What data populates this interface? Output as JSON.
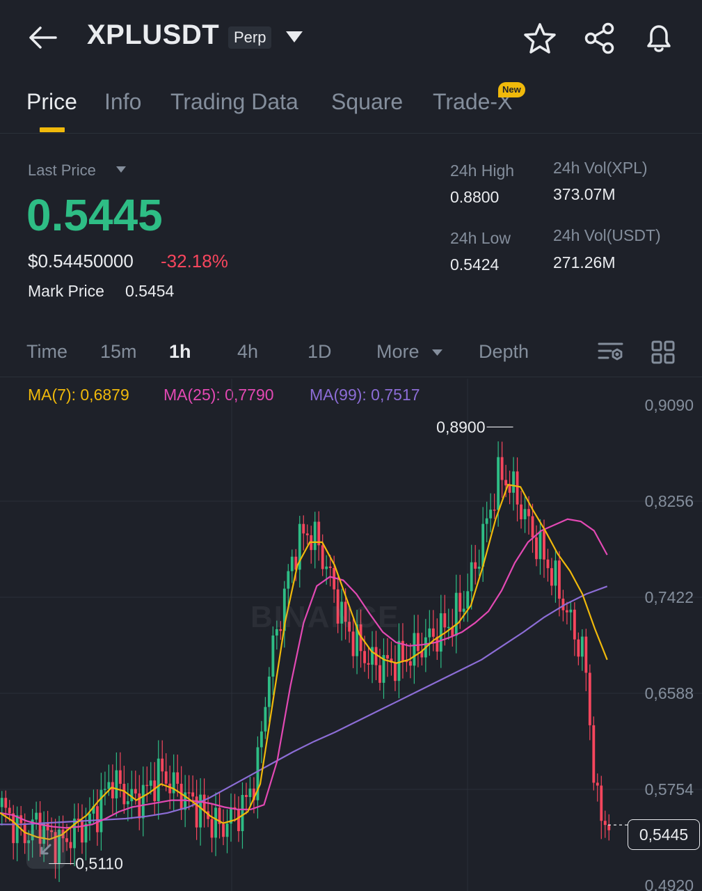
{
  "header": {
    "symbol": "XPLUSDT",
    "contract_type": "Perp",
    "icons": [
      "back-arrow-icon",
      "dropdown-caret-icon",
      "star-icon",
      "share-icon",
      "bell-icon"
    ]
  },
  "tabs": [
    {
      "label": "Price",
      "active": true
    },
    {
      "label": "Info",
      "active": false
    },
    {
      "label": "Trading Data",
      "active": false
    },
    {
      "label": "Square",
      "active": false
    },
    {
      "label": "Trade-X",
      "active": false,
      "badge": "New"
    }
  ],
  "ticker": {
    "last_price_label": "Last Price",
    "last_price": "0.5445",
    "usd_price": "$0.54450000",
    "change_pct": "-32.18%",
    "mark_price_label": "Mark Price",
    "mark_price": "0.5454",
    "high_label": "24h High",
    "high": "0.8800",
    "low_label": "24h Low",
    "low": "0.5424",
    "vol_base_label": "24h Vol(XPL)",
    "vol_base": "373.07M",
    "vol_quote_label": "24h Vol(USDT)",
    "vol_quote": "271.26M"
  },
  "intervals": {
    "items": [
      "Time",
      "15m",
      "1h",
      "4h",
      "1D",
      "More",
      "Depth"
    ],
    "selected": "1h"
  },
  "indicators": {
    "ma7": "MA(7): 0,6879",
    "ma25": "MA(25): 0,7790",
    "ma99": "MA(99): 0,7517"
  },
  "colors": {
    "up": "#2ebd85",
    "down": "#f6465d",
    "accent": "#f0b90b",
    "ma7": "#f0b90b",
    "ma25": "#e349b4",
    "ma99": "#8c6dd6",
    "background": "#1e2129"
  },
  "chart_data": {
    "type": "candlestick",
    "interval": "1h",
    "watermark": "BINANCE",
    "y_ticks": [
      "0,9090",
      "0,8256",
      "0,7422",
      "0,6588",
      "0,5754",
      "0,4920"
    ],
    "ylim": [
      0.492,
      0.909
    ],
    "max_label": "0,8900",
    "min_label": "0,5110",
    "current_price_label": "0,5445",
    "close_path": [
      0.56,
      0.545,
      0.535,
      0.548,
      0.532,
      0.528,
      0.54,
      0.545,
      0.56,
      0.585,
      0.572,
      0.565,
      0.575,
      0.59,
      0.58,
      0.57,
      0.562,
      0.55,
      0.542,
      0.552,
      0.562,
      0.59,
      0.68,
      0.73,
      0.78,
      0.8,
      0.79,
      0.76,
      0.725,
      0.705,
      0.69,
      0.682,
      0.685,
      0.688,
      0.695,
      0.705,
      0.712,
      0.72,
      0.738,
      0.77,
      0.81,
      0.85,
      0.838,
      0.815,
      0.79,
      0.77,
      0.745,
      0.715,
      0.69,
      0.56,
      0.5445
    ],
    "ma7_path": [
      0.555,
      0.548,
      0.538,
      0.534,
      0.532,
      0.536,
      0.545,
      0.553,
      0.566,
      0.577,
      0.574,
      0.566,
      0.572,
      0.58,
      0.576,
      0.569,
      0.561,
      0.552,
      0.546,
      0.549,
      0.556,
      0.58,
      0.65,
      0.72,
      0.77,
      0.79,
      0.79,
      0.77,
      0.74,
      0.71,
      0.695,
      0.688,
      0.685,
      0.688,
      0.695,
      0.705,
      0.712,
      0.72,
      0.735,
      0.77,
      0.81,
      0.84,
      0.838,
      0.818,
      0.8,
      0.78,
      0.765,
      0.745,
      0.715,
      0.6879
    ],
    "ma25_path": [
      0.555,
      0.553,
      0.548,
      0.545,
      0.543,
      0.542,
      0.543,
      0.545,
      0.55,
      0.556,
      0.56,
      0.562,
      0.564,
      0.566,
      0.566,
      0.565,
      0.563,
      0.56,
      0.558,
      0.558,
      0.562,
      0.6,
      0.665,
      0.72,
      0.752,
      0.76,
      0.757,
      0.745,
      0.728,
      0.712,
      0.703,
      0.7,
      0.701,
      0.703,
      0.707,
      0.712,
      0.72,
      0.73,
      0.748,
      0.772,
      0.79,
      0.8,
      0.805,
      0.81,
      0.808,
      0.8,
      0.779
    ],
    "ma99_path": [
      0.545,
      0.545,
      0.546,
      0.547,
      0.548,
      0.549,
      0.55,
      0.552,
      0.555,
      0.56,
      0.568,
      0.578,
      0.588,
      0.598,
      0.608,
      0.617,
      0.625,
      0.634,
      0.643,
      0.652,
      0.661,
      0.67,
      0.679,
      0.688,
      0.7,
      0.712,
      0.725,
      0.736,
      0.745,
      0.7517
    ]
  }
}
